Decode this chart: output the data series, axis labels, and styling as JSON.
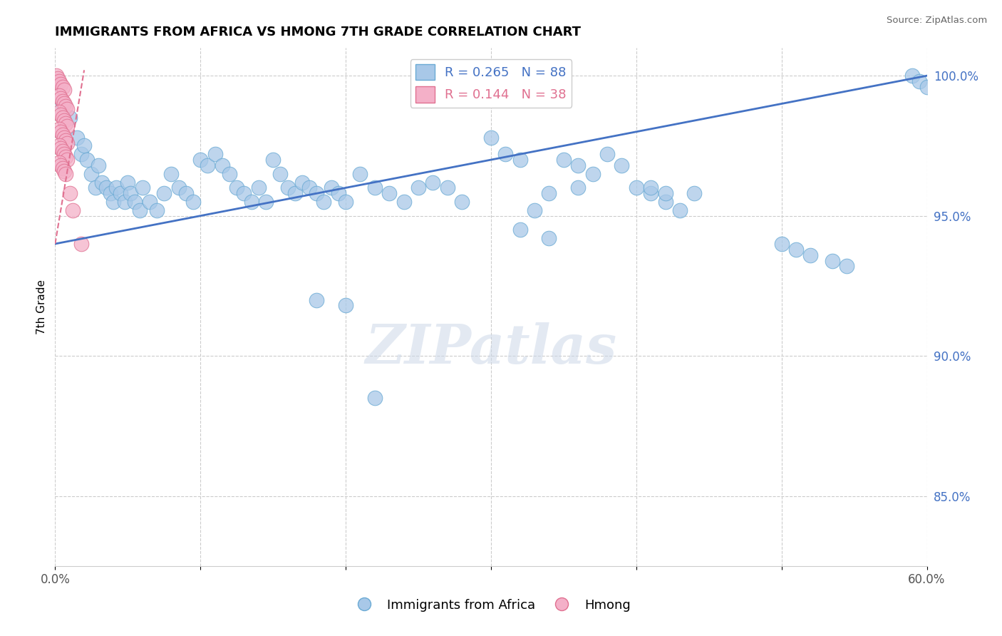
{
  "title": "IMMIGRANTS FROM AFRICA VS HMONG 7TH GRADE CORRELATION CHART",
  "source": "Source: ZipAtlas.com",
  "ylabel": "7th Grade",
  "xlim": [
    0.0,
    0.6
  ],
  "ylim": [
    0.825,
    1.01
  ],
  "xticks": [
    0.0,
    0.1,
    0.2,
    0.3,
    0.4,
    0.5,
    0.6
  ],
  "xticklabels": [
    "0.0%",
    "",
    "",
    "",
    "",
    "",
    "60.0%"
  ],
  "yticks": [
    0.85,
    0.9,
    0.95,
    1.0
  ],
  "yticklabels": [
    "85.0%",
    "90.0%",
    "95.0%",
    "100.0%"
  ],
  "R_blue": 0.265,
  "N_blue": 88,
  "R_pink": 0.144,
  "N_pink": 38,
  "blue_color": "#a8c8e8",
  "blue_edge": "#6aaad4",
  "pink_color": "#f4b0c8",
  "pink_edge": "#e07090",
  "line_blue": "#4472c4",
  "line_pink": "#e07090",
  "watermark": "ZIPatlas",
  "blue_line_x": [
    0.0,
    0.6
  ],
  "blue_line_y": [
    0.94,
    1.0
  ],
  "pink_line_x": [
    0.0,
    0.02
  ],
  "pink_line_y": [
    0.94,
    1.002
  ],
  "blue_scatter_x": [
    0.005,
    0.01,
    0.015,
    0.018,
    0.02,
    0.022,
    0.025,
    0.028,
    0.03,
    0.032,
    0.035,
    0.038,
    0.04,
    0.042,
    0.045,
    0.048,
    0.05,
    0.052,
    0.055,
    0.058,
    0.06,
    0.065,
    0.07,
    0.075,
    0.08,
    0.085,
    0.09,
    0.095,
    0.1,
    0.105,
    0.11,
    0.115,
    0.12,
    0.125,
    0.13,
    0.135,
    0.14,
    0.145,
    0.15,
    0.155,
    0.16,
    0.165,
    0.17,
    0.175,
    0.18,
    0.185,
    0.19,
    0.195,
    0.2,
    0.21,
    0.22,
    0.23,
    0.24,
    0.25,
    0.26,
    0.27,
    0.28,
    0.3,
    0.31,
    0.32,
    0.33,
    0.34,
    0.35,
    0.36,
    0.37,
    0.38,
    0.39,
    0.4,
    0.41,
    0.42,
    0.43,
    0.44,
    0.32,
    0.34,
    0.36,
    0.5,
    0.51,
    0.52,
    0.535,
    0.545,
    0.41,
    0.42,
    0.59,
    0.595,
    0.6,
    0.18,
    0.2,
    0.22
  ],
  "blue_scatter_y": [
    0.99,
    0.985,
    0.978,
    0.972,
    0.975,
    0.97,
    0.965,
    0.96,
    0.968,
    0.962,
    0.96,
    0.958,
    0.955,
    0.96,
    0.958,
    0.955,
    0.962,
    0.958,
    0.955,
    0.952,
    0.96,
    0.955,
    0.952,
    0.958,
    0.965,
    0.96,
    0.958,
    0.955,
    0.97,
    0.968,
    0.972,
    0.968,
    0.965,
    0.96,
    0.958,
    0.955,
    0.96,
    0.955,
    0.97,
    0.965,
    0.96,
    0.958,
    0.962,
    0.96,
    0.958,
    0.955,
    0.96,
    0.958,
    0.955,
    0.965,
    0.96,
    0.958,
    0.955,
    0.96,
    0.962,
    0.96,
    0.955,
    0.978,
    0.972,
    0.97,
    0.952,
    0.958,
    0.97,
    0.968,
    0.965,
    0.972,
    0.968,
    0.96,
    0.958,
    0.955,
    0.952,
    0.958,
    0.945,
    0.942,
    0.96,
    0.94,
    0.938,
    0.936,
    0.934,
    0.932,
    0.96,
    0.958,
    1.0,
    0.998,
    0.996,
    0.92,
    0.918,
    0.885
  ],
  "pink_scatter_x": [
    0.001,
    0.002,
    0.003,
    0.004,
    0.005,
    0.006,
    0.003,
    0.004,
    0.005,
    0.006,
    0.007,
    0.008,
    0.003,
    0.004,
    0.005,
    0.006,
    0.007,
    0.008,
    0.003,
    0.004,
    0.005,
    0.006,
    0.007,
    0.008,
    0.003,
    0.004,
    0.005,
    0.006,
    0.007,
    0.008,
    0.003,
    0.004,
    0.005,
    0.006,
    0.007,
    0.01,
    0.012,
    0.018
  ],
  "pink_scatter_y": [
    1.0,
    0.999,
    0.998,
    0.997,
    0.996,
    0.995,
    0.993,
    0.992,
    0.991,
    0.99,
    0.989,
    0.988,
    0.987,
    0.986,
    0.985,
    0.984,
    0.983,
    0.982,
    0.981,
    0.98,
    0.979,
    0.978,
    0.977,
    0.976,
    0.975,
    0.974,
    0.973,
    0.972,
    0.971,
    0.97,
    0.969,
    0.968,
    0.967,
    0.966,
    0.965,
    0.958,
    0.952,
    0.94
  ]
}
